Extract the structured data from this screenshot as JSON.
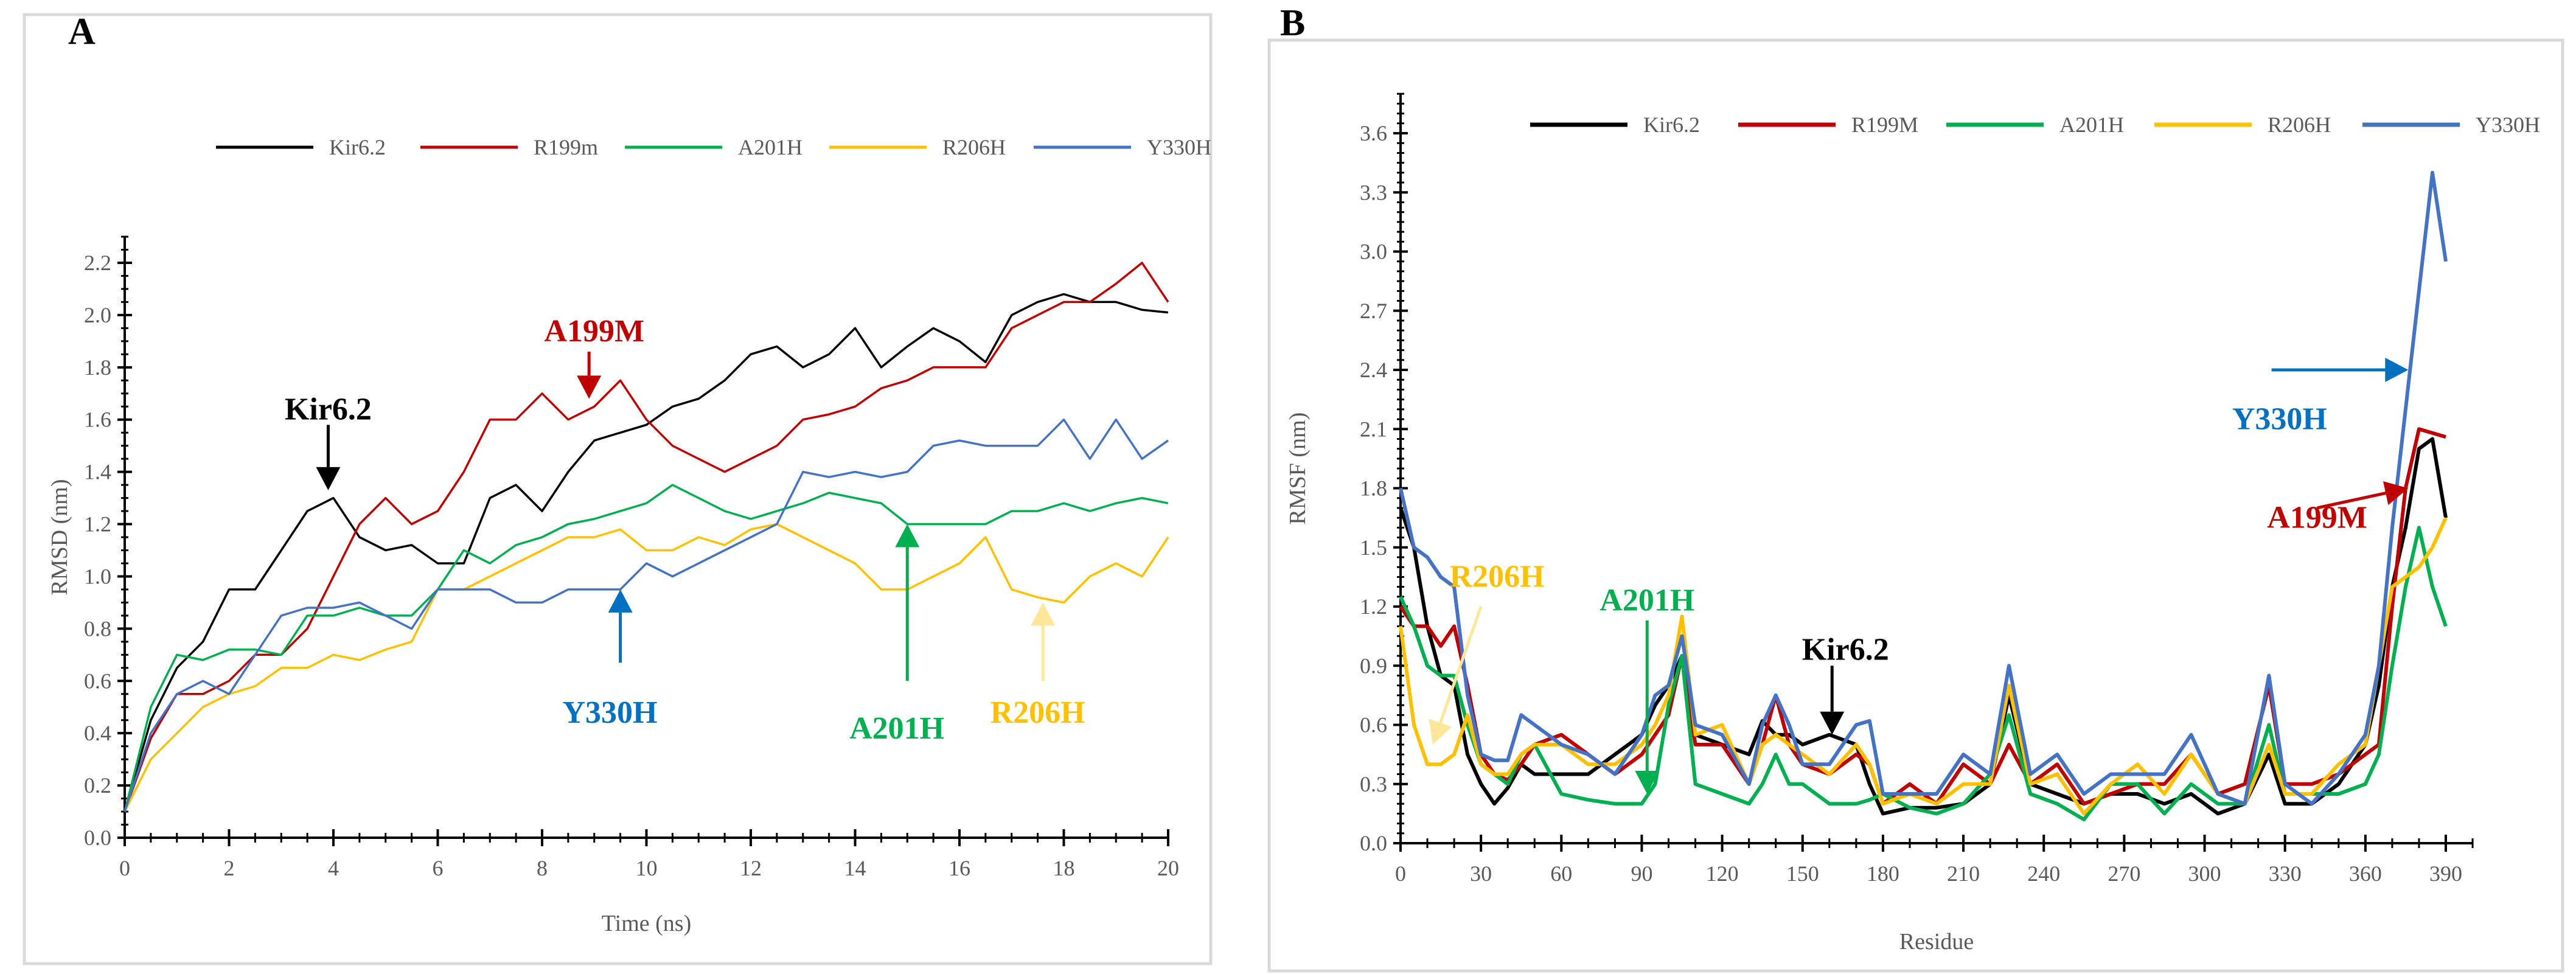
{
  "chart_data": [
    {
      "panel": "A",
      "type": "line",
      "title": "",
      "xlabel": "Time (ns)",
      "ylabel": "RMSD (nm)",
      "xlim": [
        0,
        20
      ],
      "ylim": [
        0,
        2.3
      ],
      "xticks": [
        0,
        2,
        4,
        6,
        8,
        10,
        12,
        14,
        16,
        18,
        20
      ],
      "yticks": [
        "0.0",
        "0.2",
        "0.4",
        "0.6",
        "0.8",
        "1.0",
        "1.2",
        "1.4",
        "1.6",
        "1.8",
        "2.0",
        "2.2"
      ],
      "legend_position": "top",
      "x": [
        0,
        0.5,
        1,
        1.5,
        2,
        2.5,
        3,
        3.5,
        4,
        4.5,
        5,
        5.5,
        6,
        6.5,
        7,
        7.5,
        8,
        8.5,
        9,
        9.5,
        10,
        10.5,
        11,
        11.5,
        12,
        12.5,
        13,
        13.5,
        14,
        14.5,
        15,
        15.5,
        16,
        16.5,
        17,
        17.5,
        18,
        18.5,
        19,
        19.5,
        20
      ],
      "series": [
        {
          "name": "Kir6.2",
          "color": "#000000",
          "values": [
            0.1,
            0.45,
            0.65,
            0.75,
            0.95,
            0.95,
            1.1,
            1.25,
            1.3,
            1.15,
            1.1,
            1.12,
            1.05,
            1.05,
            1.3,
            1.35,
            1.25,
            1.4,
            1.52,
            1.55,
            1.58,
            1.65,
            1.68,
            1.75,
            1.85,
            1.88,
            1.8,
            1.85,
            1.95,
            1.8,
            1.88,
            1.95,
            1.9,
            1.82,
            2.0,
            2.05,
            2.08,
            2.05,
            2.05,
            2.02,
            2.01
          ]
        },
        {
          "name": "R199m",
          "color": "#C00000",
          "values": [
            0.1,
            0.38,
            0.55,
            0.55,
            0.6,
            0.7,
            0.7,
            0.8,
            1.0,
            1.2,
            1.3,
            1.2,
            1.25,
            1.4,
            1.6,
            1.6,
            1.7,
            1.6,
            1.65,
            1.75,
            1.6,
            1.5,
            1.45,
            1.4,
            1.45,
            1.5,
            1.6,
            1.62,
            1.65,
            1.72,
            1.75,
            1.8,
            1.8,
            1.8,
            1.95,
            2.0,
            2.05,
            2.05,
            2.12,
            2.2,
            2.05
          ]
        },
        {
          "name": "A201H",
          "color": "#00B050",
          "values": [
            0.1,
            0.5,
            0.7,
            0.68,
            0.72,
            0.72,
            0.7,
            0.85,
            0.85,
            0.88,
            0.85,
            0.85,
            0.95,
            1.1,
            1.05,
            1.12,
            1.15,
            1.2,
            1.22,
            1.25,
            1.28,
            1.35,
            1.3,
            1.25,
            1.22,
            1.25,
            1.28,
            1.32,
            1.3,
            1.28,
            1.2,
            1.2,
            1.2,
            1.2,
            1.25,
            1.25,
            1.28,
            1.25,
            1.28,
            1.3,
            1.28
          ]
        },
        {
          "name": "R206H",
          "color": "#FFC000",
          "values": [
            0.1,
            0.3,
            0.4,
            0.5,
            0.55,
            0.58,
            0.65,
            0.65,
            0.7,
            0.68,
            0.72,
            0.75,
            0.95,
            0.95,
            1.0,
            1.05,
            1.1,
            1.15,
            1.15,
            1.18,
            1.1,
            1.1,
            1.15,
            1.12,
            1.18,
            1.2,
            1.15,
            1.1,
            1.05,
            0.95,
            0.95,
            1.0,
            1.05,
            1.15,
            0.95,
            0.92,
            0.9,
            1.0,
            1.05,
            1.0,
            1.15
          ]
        },
        {
          "name": "Y330H",
          "color": "#4472C4",
          "values": [
            0.1,
            0.4,
            0.55,
            0.6,
            0.55,
            0.7,
            0.85,
            0.88,
            0.88,
            0.9,
            0.85,
            0.8,
            0.95,
            0.95,
            0.95,
            0.9,
            0.9,
            0.95,
            0.95,
            0.95,
            1.05,
            1.0,
            1.05,
            1.1,
            1.15,
            1.2,
            1.4,
            1.38,
            1.4,
            1.38,
            1.4,
            1.5,
            1.52,
            1.5,
            1.5,
            1.5,
            1.6,
            1.45,
            1.6,
            1.45,
            1.52
          ]
        }
      ],
      "annotations": [
        {
          "text": "Kir6.2",
          "color": "#000000",
          "arrow_color": "#000000",
          "text_at": [
            3.9,
            1.6
          ],
          "arrow_from": [
            3.9,
            1.58
          ],
          "arrow_to": [
            3.9,
            1.33
          ]
        },
        {
          "text": "A199M",
          "color": "#C00000",
          "arrow_color": "#C00000",
          "text_at": [
            9.0,
            1.9
          ],
          "arrow_from": [
            8.9,
            1.86
          ],
          "arrow_to": [
            8.9,
            1.68
          ]
        },
        {
          "text": "Y330H",
          "color": "#0070C0",
          "arrow_color": "#0070C0",
          "text_at": [
            9.3,
            0.44
          ],
          "arrow_from": [
            9.5,
            0.67
          ],
          "arrow_to": [
            9.5,
            0.95
          ]
        },
        {
          "text": "A201H",
          "color": "#00B050",
          "arrow_color": "#00B050",
          "text_at": [
            14.8,
            0.38
          ],
          "arrow_from": [
            15.0,
            0.6
          ],
          "arrow_to": [
            15.0,
            1.2
          ]
        },
        {
          "text": "R206H",
          "color": "#FFC000",
          "arrow_color": "#FFE699",
          "text_at": [
            17.5,
            0.44
          ],
          "arrow_from": [
            17.6,
            0.6
          ],
          "arrow_to": [
            17.6,
            0.9
          ]
        }
      ]
    },
    {
      "panel": "B",
      "type": "line",
      "title": "",
      "xlabel": "Residue",
      "ylabel": "RMSF (nm)",
      "xlim": [
        0,
        400
      ],
      "ylim": [
        0,
        3.8
      ],
      "xticks": [
        0,
        30,
        60,
        90,
        120,
        150,
        180,
        210,
        240,
        270,
        300,
        330,
        360,
        390
      ],
      "yticks": [
        "0.0",
        "0.3",
        "0.6",
        "0.9",
        "1.2",
        "1.5",
        "1.8",
        "2.1",
        "2.4",
        "2.7",
        "3.0",
        "3.3",
        "3.6"
      ],
      "legend_position": "top",
      "x": [
        0,
        5,
        10,
        15,
        20,
        25,
        30,
        35,
        40,
        45,
        50,
        60,
        70,
        80,
        90,
        95,
        100,
        105,
        110,
        120,
        130,
        135,
        140,
        145,
        150,
        160,
        170,
        175,
        180,
        190,
        200,
        210,
        220,
        227,
        235,
        245,
        255,
        265,
        275,
        285,
        295,
        305,
        315,
        324,
        330,
        340,
        350,
        360,
        365,
        370,
        375,
        380,
        385,
        390
      ],
      "series": [
        {
          "name": "Kir6.2",
          "color": "#000000",
          "values": [
            1.7,
            1.5,
            1.1,
            0.85,
            0.8,
            0.45,
            0.3,
            0.2,
            0.28,
            0.4,
            0.35,
            0.35,
            0.35,
            0.45,
            0.55,
            0.7,
            0.8,
            0.95,
            0.55,
            0.5,
            0.45,
            0.62,
            0.55,
            0.55,
            0.5,
            0.55,
            0.5,
            0.3,
            0.15,
            0.18,
            0.18,
            0.2,
            0.3,
            0.75,
            0.3,
            0.25,
            0.2,
            0.25,
            0.25,
            0.2,
            0.25,
            0.15,
            0.2,
            0.45,
            0.2,
            0.2,
            0.3,
            0.5,
            0.8,
            1.3,
            1.6,
            2.0,
            2.05,
            1.65
          ]
        },
        {
          "name": "R199M",
          "color": "#C00000",
          "values": [
            1.2,
            1.1,
            1.1,
            1.0,
            1.1,
            0.8,
            0.45,
            0.35,
            0.32,
            0.4,
            0.5,
            0.55,
            0.45,
            0.35,
            0.45,
            0.55,
            0.65,
            0.95,
            0.5,
            0.5,
            0.3,
            0.5,
            0.75,
            0.5,
            0.4,
            0.35,
            0.45,
            0.4,
            0.2,
            0.3,
            0.2,
            0.4,
            0.3,
            0.5,
            0.3,
            0.4,
            0.2,
            0.25,
            0.3,
            0.3,
            0.45,
            0.25,
            0.3,
            0.8,
            0.3,
            0.3,
            0.35,
            0.45,
            0.5,
            1.2,
            1.8,
            2.1,
            2.08,
            2.06
          ]
        },
        {
          "name": "A201H",
          "color": "#00B050",
          "values": [
            1.25,
            1.1,
            0.9,
            0.85,
            0.85,
            0.6,
            0.4,
            0.35,
            0.3,
            0.45,
            0.5,
            0.25,
            0.22,
            0.2,
            0.2,
            0.3,
            0.7,
            0.95,
            0.3,
            0.25,
            0.2,
            0.3,
            0.45,
            0.3,
            0.3,
            0.2,
            0.2,
            0.22,
            0.25,
            0.18,
            0.15,
            0.2,
            0.35,
            0.65,
            0.25,
            0.2,
            0.12,
            0.3,
            0.3,
            0.15,
            0.3,
            0.2,
            0.2,
            0.6,
            0.25,
            0.25,
            0.25,
            0.3,
            0.45,
            0.9,
            1.3,
            1.6,
            1.3,
            1.1
          ]
        },
        {
          "name": "R206H",
          "color": "#FFC000",
          "values": [
            1.1,
            0.6,
            0.4,
            0.4,
            0.45,
            0.65,
            0.4,
            0.35,
            0.35,
            0.45,
            0.5,
            0.5,
            0.4,
            0.4,
            0.5,
            0.6,
            0.75,
            1.15,
            0.55,
            0.6,
            0.3,
            0.5,
            0.55,
            0.5,
            0.45,
            0.35,
            0.5,
            0.4,
            0.2,
            0.25,
            0.2,
            0.3,
            0.3,
            0.8,
            0.3,
            0.35,
            0.15,
            0.3,
            0.4,
            0.25,
            0.45,
            0.25,
            0.2,
            0.5,
            0.25,
            0.25,
            0.4,
            0.5,
            0.9,
            1.3,
            1.35,
            1.4,
            1.5,
            1.65
          ]
        },
        {
          "name": "Y330H",
          "color": "#4472C4",
          "values": [
            1.8,
            1.5,
            1.45,
            1.35,
            1.3,
            0.75,
            0.45,
            0.42,
            0.42,
            0.65,
            0.6,
            0.5,
            0.45,
            0.35,
            0.55,
            0.75,
            0.8,
            1.05,
            0.6,
            0.55,
            0.3,
            0.6,
            0.75,
            0.6,
            0.4,
            0.4,
            0.6,
            0.62,
            0.25,
            0.25,
            0.25,
            0.45,
            0.35,
            0.9,
            0.35,
            0.45,
            0.25,
            0.35,
            0.35,
            0.35,
            0.55,
            0.25,
            0.2,
            0.85,
            0.3,
            0.2,
            0.35,
            0.55,
            0.9,
            1.6,
            2.2,
            2.8,
            3.4,
            2.95
          ]
        }
      ],
      "annotations": [
        {
          "text": "Y330H",
          "color": "#0070C0",
          "arrow_color": "#0070C0",
          "text_at": [
            328,
            2.1
          ],
          "arrow_from": [
            325,
            2.4
          ],
          "arrow_to": [
            376,
            2.4
          ]
        },
        {
          "text": "A199M",
          "color": "#C00000",
          "arrow_color": "#C00000",
          "text_at": [
            342,
            1.6
          ],
          "arrow_from": [
            342,
            1.7
          ],
          "arrow_to": [
            376,
            1.8
          ]
        },
        {
          "text": "R206H",
          "color": "#FFC000",
          "arrow_color": "#FFE699",
          "text_at": [
            36,
            1.3
          ],
          "arrow_from": [
            30,
            1.2
          ],
          "arrow_to": [
            12,
            0.5
          ]
        },
        {
          "text": "A201H",
          "color": "#00B050",
          "arrow_color": "#00B050",
          "text_at": [
            92,
            1.18
          ],
          "arrow_from": [
            92,
            1.13
          ],
          "arrow_to": [
            92,
            0.25
          ]
        },
        {
          "text": "Kir6.2",
          "color": "#000000",
          "arrow_color": "#000000",
          "text_at": [
            166,
            0.93
          ],
          "arrow_from": [
            161,
            0.9
          ],
          "arrow_to": [
            161,
            0.55
          ]
        }
      ]
    }
  ]
}
